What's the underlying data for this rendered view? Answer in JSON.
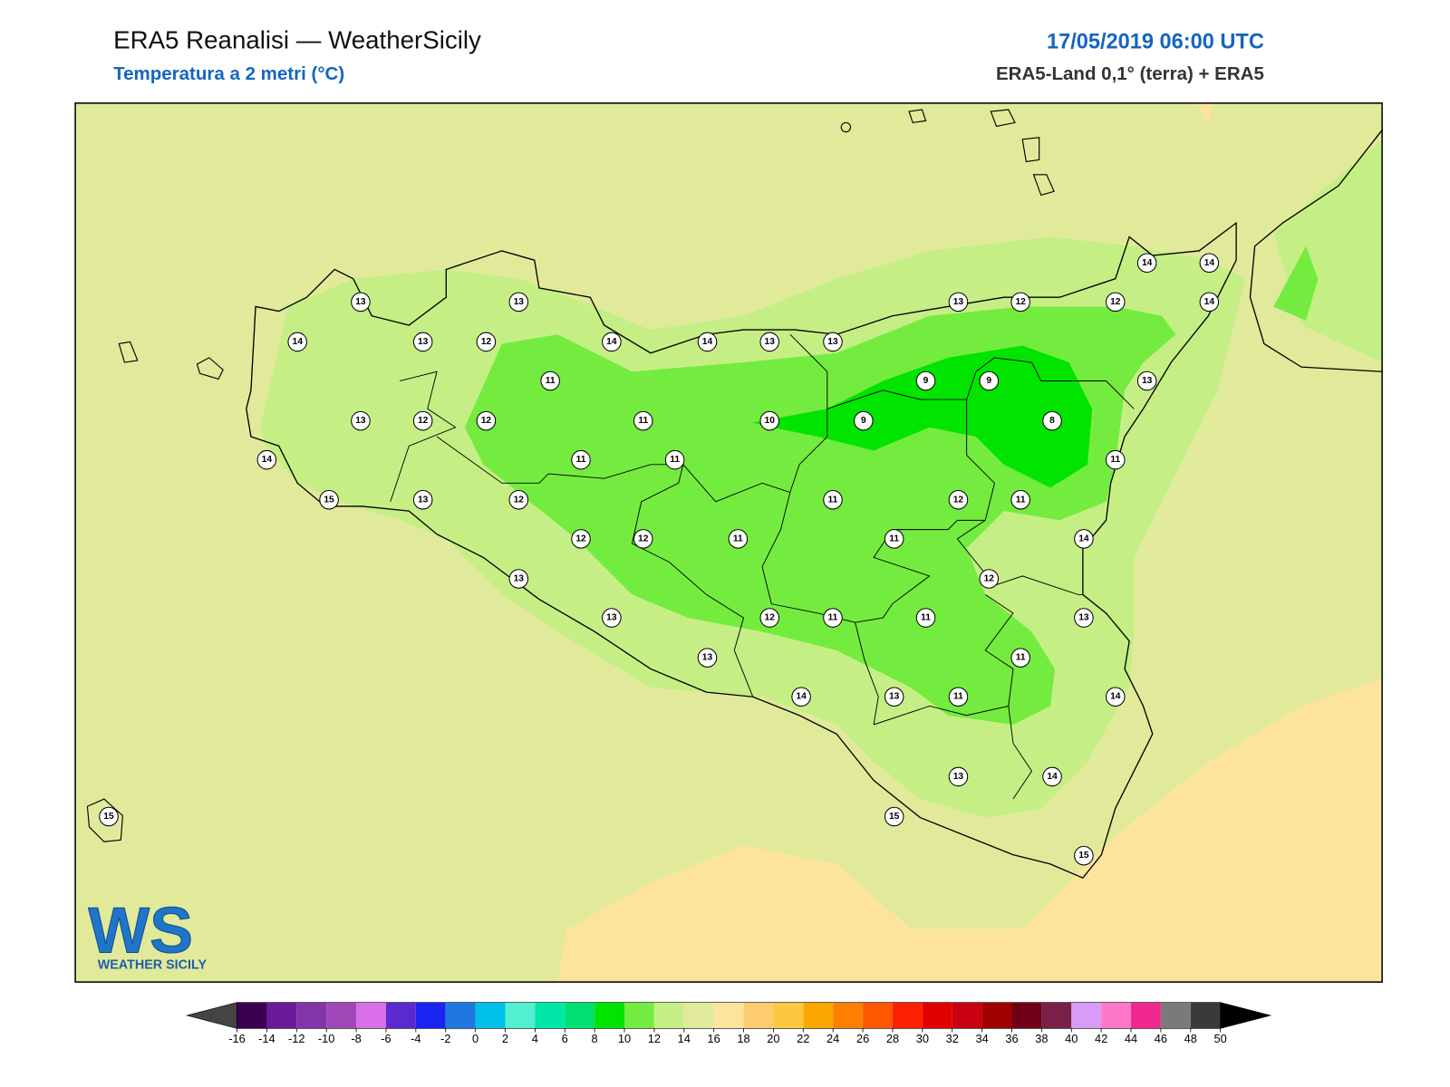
{
  "header": {
    "title": "ERA5 Reanalisi — WeatherSicily",
    "subtitle": "Temperatura a 2 metri (°C)",
    "datetime": "17/05/2019 06:00 UTC",
    "source": "ERA5-Land 0,1° (terra) + ERA5"
  },
  "logo": {
    "mark": "WS",
    "text": "WEATHER SICILY"
  },
  "stations": [
    13,
    13,
    14,
    13,
    12,
    14,
    14,
    13,
    13,
    13,
    12,
    12,
    14,
    14,
    14,
    13,
    11,
    9,
    9,
    13,
    12,
    12,
    11,
    10,
    9,
    8,
    14,
    11,
    11,
    11,
    15,
    13,
    12,
    11,
    12,
    11,
    12,
    12,
    11,
    11,
    14,
    12,
    13,
    13,
    12,
    11,
    11,
    13,
    13,
    11,
    14,
    13,
    11,
    14,
    13,
    14,
    15,
    15,
    15
  ],
  "colorbar": {
    "ticks": [
      -16,
      -14,
      -12,
      -10,
      -8,
      -6,
      -4,
      -2,
      0,
      2,
      4,
      6,
      8,
      10,
      12,
      14,
      16,
      18,
      20,
      22,
      24,
      26,
      28,
      30,
      32,
      34,
      36,
      38,
      40,
      42,
      44,
      46,
      48,
      50
    ],
    "colors": [
      "#3b0050",
      "#6a1a9a",
      "#8136a8",
      "#a048b8",
      "#d870e8",
      "#5a2ad0",
      "#1a24f0",
      "#1e78e0",
      "#00c0e8",
      "#50f0d0",
      "#00e8a8",
      "#00e070",
      "#00e400",
      "#74ec3f",
      "#c5ef85",
      "#e1ea9b",
      "#fde49c",
      "#fdcc70",
      "#fdc840",
      "#fda800",
      "#fd8000",
      "#fd5800",
      "#fd2000",
      "#e00000",
      "#c80010",
      "#a00000",
      "#700018",
      "#7a2048",
      "#d89cf8",
      "#ff78c8",
      "#f02890",
      "#7a7a7a",
      "#3a3a3a"
    ],
    "under_color": "#444444",
    "over_color": "#000000"
  }
}
